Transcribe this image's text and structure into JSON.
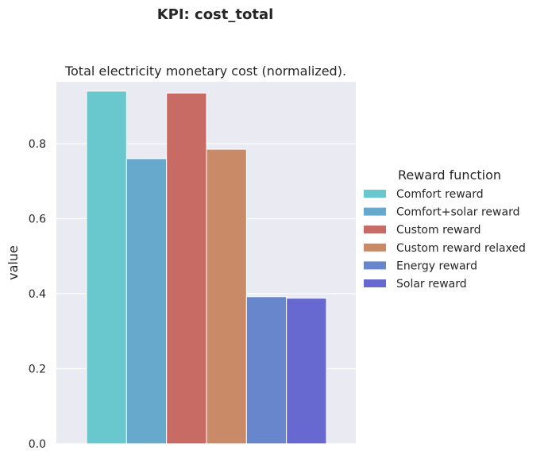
{
  "suptitle": "KPI: cost_total",
  "chart_data": {
    "type": "bar",
    "title": "Total electricity monetary cost (normalized).",
    "xlabel": "",
    "ylabel": "value",
    "ylim": [
      0,
      0.965
    ],
    "yticks": [
      "0.0",
      "0.2",
      "0.4",
      "0.6",
      "0.8"
    ],
    "grid": true,
    "legend_title": "Reward function",
    "legend_position": "right",
    "categories": [
      ""
    ],
    "series": [
      {
        "name": "Comfort reward",
        "values": [
          0.94
        ],
        "color": "#69C7CE"
      },
      {
        "name": "Comfort+solar reward",
        "values": [
          0.76
        ],
        "color": "#67A8CD"
      },
      {
        "name": "Custom reward",
        "values": [
          0.935
        ],
        "color": "#C96B65"
      },
      {
        "name": "Custom reward relaxed",
        "values": [
          0.785
        ],
        "color": "#C98B67"
      },
      {
        "name": "Energy reward",
        "values": [
          0.392
        ],
        "color": "#6886CB"
      },
      {
        "name": "Solar reward",
        "values": [
          0.388
        ],
        "color": "#6868D1"
      }
    ]
  }
}
